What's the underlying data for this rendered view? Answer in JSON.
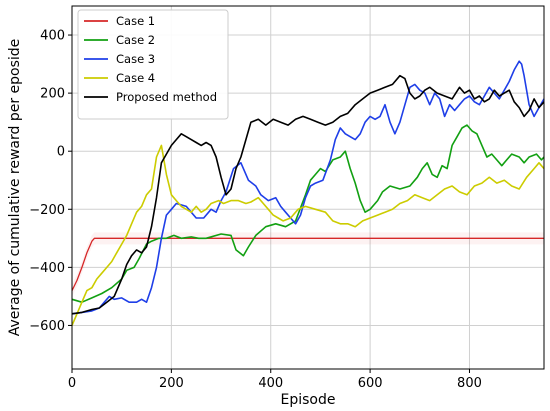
{
  "chart_data": {
    "type": "line",
    "xlabel": "Episode",
    "ylabel": "Average of cumulative reward per eposide",
    "xlim": [
      0,
      950
    ],
    "ylim": [
      -750,
      500
    ],
    "xticks": [
      0,
      200,
      400,
      600,
      800
    ],
    "yticks": [
      -600,
      -400,
      -200,
      0,
      200,
      400
    ],
    "grid": true,
    "legend_position": "top-left",
    "series": [
      {
        "name": "Case 1",
        "color": "#d62728",
        "points": [
          [
            0,
            -480
          ],
          [
            10,
            -445
          ],
          [
            20,
            -400
          ],
          [
            30,
            -350
          ],
          [
            40,
            -310
          ],
          [
            45,
            -300
          ],
          [
            300,
            -300
          ],
          [
            950,
            -300
          ]
        ]
      },
      {
        "name": "Case 2",
        "color": "#12a012",
        "points": [
          [
            0,
            -510
          ],
          [
            20,
            -520
          ],
          [
            40,
            -505
          ],
          [
            60,
            -490
          ],
          [
            80,
            -470
          ],
          [
            100,
            -440
          ],
          [
            110,
            -410
          ],
          [
            125,
            -400
          ],
          [
            135,
            -370
          ],
          [
            150,
            -320
          ],
          [
            160,
            -310
          ],
          [
            175,
            -300
          ],
          [
            190,
            -300
          ],
          [
            205,
            -290
          ],
          [
            220,
            -300
          ],
          [
            240,
            -295
          ],
          [
            255,
            -300
          ],
          [
            270,
            -300
          ],
          [
            300,
            -285
          ],
          [
            320,
            -290
          ],
          [
            330,
            -340
          ],
          [
            345,
            -360
          ],
          [
            355,
            -330
          ],
          [
            370,
            -290
          ],
          [
            390,
            -260
          ],
          [
            410,
            -250
          ],
          [
            430,
            -260
          ],
          [
            450,
            -240
          ],
          [
            470,
            -150
          ],
          [
            480,
            -100
          ],
          [
            490,
            -80
          ],
          [
            500,
            -60
          ],
          [
            510,
            -70
          ],
          [
            525,
            -30
          ],
          [
            540,
            -20
          ],
          [
            550,
            0
          ],
          [
            560,
            -60
          ],
          [
            570,
            -110
          ],
          [
            580,
            -170
          ],
          [
            590,
            -210
          ],
          [
            600,
            -200
          ],
          [
            615,
            -170
          ],
          [
            625,
            -140
          ],
          [
            640,
            -120
          ],
          [
            660,
            -130
          ],
          [
            680,
            -120
          ],
          [
            695,
            -90
          ],
          [
            705,
            -60
          ],
          [
            715,
            -40
          ],
          [
            725,
            -80
          ],
          [
            735,
            -90
          ],
          [
            745,
            -50
          ],
          [
            755,
            -60
          ],
          [
            765,
            20
          ],
          [
            775,
            50
          ],
          [
            785,
            80
          ],
          [
            795,
            90
          ],
          [
            805,
            70
          ],
          [
            815,
            60
          ],
          [
            825,
            20
          ],
          [
            835,
            -20
          ],
          [
            845,
            -10
          ],
          [
            855,
            -30
          ],
          [
            865,
            -50
          ],
          [
            875,
            -30
          ],
          [
            885,
            -10
          ],
          [
            900,
            -20
          ],
          [
            910,
            -40
          ],
          [
            920,
            -20
          ],
          [
            935,
            -10
          ],
          [
            945,
            -30
          ],
          [
            950,
            -20
          ]
        ]
      },
      {
        "name": "Case 3",
        "color": "#1f3fe8",
        "points": [
          [
            0,
            -560
          ],
          [
            20,
            -555
          ],
          [
            40,
            -550
          ],
          [
            55,
            -540
          ],
          [
            65,
            -520
          ],
          [
            75,
            -500
          ],
          [
            85,
            -510
          ],
          [
            100,
            -505
          ],
          [
            115,
            -520
          ],
          [
            130,
            -520
          ],
          [
            140,
            -510
          ],
          [
            150,
            -520
          ],
          [
            160,
            -470
          ],
          [
            170,
            -400
          ],
          [
            180,
            -300
          ],
          [
            190,
            -220
          ],
          [
            200,
            -200
          ],
          [
            210,
            -180
          ],
          [
            220,
            -185
          ],
          [
            230,
            -190
          ],
          [
            240,
            -210
          ],
          [
            250,
            -230
          ],
          [
            265,
            -230
          ],
          [
            280,
            -200
          ],
          [
            290,
            -210
          ],
          [
            300,
            -170
          ],
          [
            310,
            -140
          ],
          [
            325,
            -60
          ],
          [
            340,
            -40
          ],
          [
            355,
            -100
          ],
          [
            370,
            -120
          ],
          [
            380,
            -150
          ],
          [
            395,
            -170
          ],
          [
            410,
            -160
          ],
          [
            420,
            -190
          ],
          [
            430,
            -210
          ],
          [
            440,
            -230
          ],
          [
            450,
            -250
          ],
          [
            460,
            -220
          ],
          [
            470,
            -160
          ],
          [
            480,
            -120
          ],
          [
            490,
            -110
          ],
          [
            505,
            -100
          ],
          [
            520,
            -30
          ],
          [
            530,
            40
          ],
          [
            540,
            80
          ],
          [
            550,
            60
          ],
          [
            560,
            50
          ],
          [
            570,
            40
          ],
          [
            580,
            60
          ],
          [
            590,
            100
          ],
          [
            600,
            120
          ],
          [
            610,
            110
          ],
          [
            620,
            120
          ],
          [
            630,
            160
          ],
          [
            640,
            100
          ],
          [
            650,
            60
          ],
          [
            660,
            100
          ],
          [
            670,
            160
          ],
          [
            680,
            220
          ],
          [
            690,
            230
          ],
          [
            700,
            210
          ],
          [
            710,
            200
          ],
          [
            720,
            160
          ],
          [
            730,
            200
          ],
          [
            740,
            180
          ],
          [
            750,
            120
          ],
          [
            760,
            160
          ],
          [
            770,
            140
          ],
          [
            780,
            160
          ],
          [
            790,
            180
          ],
          [
            800,
            190
          ],
          [
            810,
            170
          ],
          [
            820,
            160
          ],
          [
            830,
            190
          ],
          [
            840,
            220
          ],
          [
            850,
            200
          ],
          [
            860,
            180
          ],
          [
            870,
            210
          ],
          [
            880,
            240
          ],
          [
            890,
            280
          ],
          [
            900,
            310
          ],
          [
            905,
            300
          ],
          [
            910,
            260
          ],
          [
            920,
            160
          ],
          [
            930,
            120
          ],
          [
            940,
            150
          ],
          [
            950,
            180
          ]
        ]
      },
      {
        "name": "Case 4",
        "color": "#cccc00",
        "points": [
          [
            0,
            -600
          ],
          [
            10,
            -560
          ],
          [
            20,
            -520
          ],
          [
            30,
            -480
          ],
          [
            40,
            -470
          ],
          [
            50,
            -440
          ],
          [
            60,
            -420
          ],
          [
            70,
            -400
          ],
          [
            80,
            -380
          ],
          [
            90,
            -350
          ],
          [
            100,
            -320
          ],
          [
            110,
            -290
          ],
          [
            120,
            -250
          ],
          [
            130,
            -210
          ],
          [
            140,
            -190
          ],
          [
            150,
            -150
          ],
          [
            160,
            -130
          ],
          [
            170,
            -20
          ],
          [
            180,
            20
          ],
          [
            190,
            -80
          ],
          [
            200,
            -150
          ],
          [
            210,
            -170
          ],
          [
            220,
            -190
          ],
          [
            230,
            -200
          ],
          [
            240,
            -210
          ],
          [
            250,
            -190
          ],
          [
            260,
            -210
          ],
          [
            270,
            -200
          ],
          [
            280,
            -180
          ],
          [
            295,
            -170
          ],
          [
            305,
            -180
          ],
          [
            320,
            -170
          ],
          [
            335,
            -170
          ],
          [
            350,
            -180
          ],
          [
            360,
            -175
          ],
          [
            375,
            -160
          ],
          [
            385,
            -180
          ],
          [
            395,
            -200
          ],
          [
            405,
            -220
          ],
          [
            415,
            -230
          ],
          [
            425,
            -240
          ],
          [
            440,
            -230
          ],
          [
            455,
            -200
          ],
          [
            470,
            -190
          ],
          [
            490,
            -200
          ],
          [
            510,
            -210
          ],
          [
            525,
            -240
          ],
          [
            540,
            -250
          ],
          [
            555,
            -250
          ],
          [
            570,
            -260
          ],
          [
            585,
            -240
          ],
          [
            600,
            -230
          ],
          [
            615,
            -220
          ],
          [
            630,
            -210
          ],
          [
            645,
            -200
          ],
          [
            660,
            -180
          ],
          [
            675,
            -170
          ],
          [
            690,
            -150
          ],
          [
            705,
            -160
          ],
          [
            720,
            -170
          ],
          [
            735,
            -150
          ],
          [
            750,
            -130
          ],
          [
            765,
            -120
          ],
          [
            780,
            -140
          ],
          [
            795,
            -150
          ],
          [
            810,
            -120
          ],
          [
            825,
            -110
          ],
          [
            840,
            -90
          ],
          [
            855,
            -110
          ],
          [
            870,
            -100
          ],
          [
            885,
            -120
          ],
          [
            900,
            -130
          ],
          [
            915,
            -90
          ],
          [
            930,
            -60
          ],
          [
            940,
            -40
          ],
          [
            950,
            -60
          ]
        ]
      },
      {
        "name": "Proposed method",
        "color": "#000000",
        "points": [
          [
            0,
            -560
          ],
          [
            20,
            -555
          ],
          [
            40,
            -545
          ],
          [
            55,
            -540
          ],
          [
            70,
            -520
          ],
          [
            85,
            -500
          ],
          [
            100,
            -440
          ],
          [
            110,
            -390
          ],
          [
            120,
            -360
          ],
          [
            130,
            -340
          ],
          [
            140,
            -350
          ],
          [
            150,
            -330
          ],
          [
            160,
            -260
          ],
          [
            170,
            -160
          ],
          [
            180,
            -40
          ],
          [
            190,
            -10
          ],
          [
            200,
            20
          ],
          [
            210,
            40
          ],
          [
            220,
            60
          ],
          [
            230,
            50
          ],
          [
            240,
            40
          ],
          [
            250,
            30
          ],
          [
            260,
            20
          ],
          [
            270,
            30
          ],
          [
            280,
            20
          ],
          [
            290,
            -20
          ],
          [
            300,
            -90
          ],
          [
            310,
            -150
          ],
          [
            320,
            -130
          ],
          [
            330,
            -60
          ],
          [
            340,
            -20
          ],
          [
            350,
            40
          ],
          [
            360,
            100
          ],
          [
            375,
            110
          ],
          [
            390,
            90
          ],
          [
            405,
            110
          ],
          [
            420,
            100
          ],
          [
            435,
            90
          ],
          [
            450,
            110
          ],
          [
            465,
            120
          ],
          [
            480,
            110
          ],
          [
            495,
            100
          ],
          [
            510,
            90
          ],
          [
            525,
            100
          ],
          [
            540,
            120
          ],
          [
            555,
            130
          ],
          [
            570,
            160
          ],
          [
            585,
            180
          ],
          [
            600,
            200
          ],
          [
            615,
            210
          ],
          [
            630,
            220
          ],
          [
            645,
            230
          ],
          [
            660,
            260
          ],
          [
            670,
            250
          ],
          [
            680,
            200
          ],
          [
            690,
            180
          ],
          [
            700,
            190
          ],
          [
            710,
            210
          ],
          [
            720,
            220
          ],
          [
            735,
            200
          ],
          [
            750,
            190
          ],
          [
            765,
            180
          ],
          [
            780,
            220
          ],
          [
            790,
            200
          ],
          [
            800,
            210
          ],
          [
            810,
            180
          ],
          [
            820,
            190
          ],
          [
            830,
            170
          ],
          [
            840,
            180
          ],
          [
            850,
            210
          ],
          [
            860,
            190
          ],
          [
            870,
            200
          ],
          [
            880,
            210
          ],
          [
            890,
            170
          ],
          [
            900,
            150
          ],
          [
            910,
            120
          ],
          [
            920,
            140
          ],
          [
            930,
            180
          ],
          [
            940,
            150
          ],
          [
            950,
            170
          ]
        ]
      }
    ]
  }
}
